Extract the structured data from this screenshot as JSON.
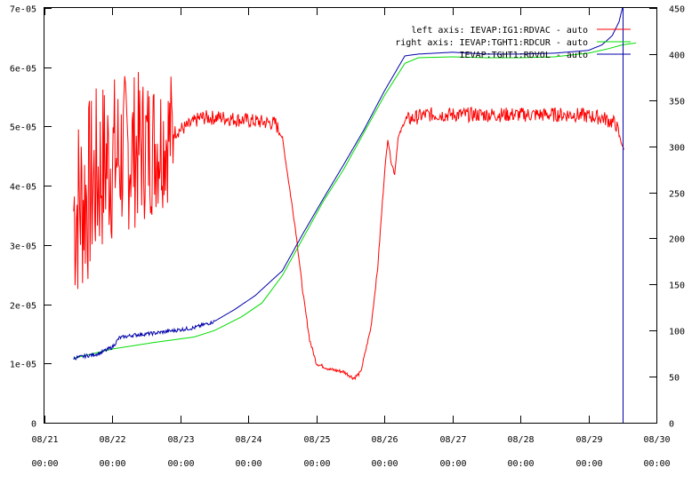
{
  "chart_data": {
    "type": "line",
    "title": "",
    "xlabel": "",
    "x_ticks": [
      {
        "date": "08/21",
        "time": "00:00",
        "day": 0
      },
      {
        "date": "08/22",
        "time": "00:00",
        "day": 1
      },
      {
        "date": "08/23",
        "time": "00:00",
        "day": 2
      },
      {
        "date": "08/24",
        "time": "00:00",
        "day": 3
      },
      {
        "date": "08/25",
        "time": "00:00",
        "day": 4
      },
      {
        "date": "08/26",
        "time": "00:00",
        "day": 5
      },
      {
        "date": "08/27",
        "time": "00:00",
        "day": 6
      },
      {
        "date": "08/28",
        "time": "00:00",
        "day": 7
      },
      {
        "date": "08/29",
        "time": "00:00",
        "day": 8
      },
      {
        "date": "08/30",
        "time": "00:00",
        "day": 9
      }
    ],
    "xlim": [
      0,
      9
    ],
    "left_axis": {
      "ylim": [
        0,
        7e-05
      ],
      "tick_values": [
        0,
        1e-05,
        2e-05,
        3e-05,
        4e-05,
        5e-05,
        6e-05,
        7e-05
      ],
      "tick_labels": [
        "0",
        "1e-05",
        "2e-05",
        "3e-05",
        "4e-05",
        "5e-05",
        "6e-05",
        "7e-05"
      ]
    },
    "right_axis": {
      "ylim": [
        0,
        450
      ],
      "tick_values": [
        0,
        50,
        100,
        150,
        200,
        250,
        300,
        350,
        400,
        450
      ],
      "tick_labels": [
        "0",
        "50",
        "100",
        "150",
        "200",
        "250",
        "300",
        "350",
        "400",
        "450"
      ]
    },
    "legend_position": "top-right",
    "series": [
      {
        "name": "left axis: IEVAP:IG1:RDVAC  - auto",
        "axis": "left",
        "color": "#ff0000",
        "style": "noisy",
        "points": [
          [
            0.43,
            3.6e-05
          ],
          [
            0.6,
            3.8e-05
          ],
          [
            0.9,
            4.4e-05
          ],
          [
            1.3,
            4.6e-05
          ],
          [
            1.6,
            4.7e-05
          ],
          [
            1.9,
            4.9e-05
          ],
          [
            2.1,
            5e-05
          ],
          [
            2.3,
            5.15e-05
          ],
          [
            2.6,
            5.15e-05
          ],
          [
            3.0,
            5.1e-05
          ],
          [
            3.4,
            5.05e-05
          ],
          [
            3.5,
            4.8e-05
          ],
          [
            3.6,
            4e-05
          ],
          [
            3.7,
            3.2e-05
          ],
          [
            3.8,
            2.2e-05
          ],
          [
            3.9,
            1.4e-05
          ],
          [
            4.0,
            1e-05
          ],
          [
            4.2,
            9e-06
          ],
          [
            4.4,
            8.6e-06
          ],
          [
            4.55,
            7.5e-06
          ],
          [
            4.65,
            8.5e-06
          ],
          [
            4.8,
            1.6e-05
          ],
          [
            4.9,
            2.6e-05
          ],
          [
            5.0,
            4.2e-05
          ],
          [
            5.05,
            4.8e-05
          ],
          [
            5.1,
            4.4e-05
          ],
          [
            5.15,
            4.2e-05
          ],
          [
            5.2,
            4.8e-05
          ],
          [
            5.3,
            5.1e-05
          ],
          [
            5.6,
            5.2e-05
          ],
          [
            6.2,
            5.2e-05
          ],
          [
            7.0,
            5.2e-05
          ],
          [
            7.8,
            5.2e-05
          ],
          [
            8.2,
            5.15e-05
          ],
          [
            8.4,
            5.05e-05
          ],
          [
            8.52,
            4.6e-05
          ]
        ]
      },
      {
        "name": "right axis: IEVAP:TGHT1:RDCUR  - auto",
        "axis": "right",
        "color": "#00dd00",
        "style": "smooth",
        "points": [
          [
            0.43,
            70
          ],
          [
            1.0,
            80
          ],
          [
            1.6,
            87
          ],
          [
            2.2,
            93
          ],
          [
            2.5,
            100
          ],
          [
            2.9,
            115
          ],
          [
            3.2,
            130
          ],
          [
            3.5,
            160
          ],
          [
            3.8,
            200
          ],
          [
            4.1,
            240
          ],
          [
            4.4,
            275
          ],
          [
            4.7,
            315
          ],
          [
            5.0,
            355
          ],
          [
            5.3,
            390
          ],
          [
            5.5,
            396
          ],
          [
            6.0,
            397
          ],
          [
            6.5,
            396
          ],
          [
            7.0,
            396
          ],
          [
            7.5,
            397
          ],
          [
            8.0,
            401
          ],
          [
            8.3,
            406
          ],
          [
            8.5,
            410
          ],
          [
            8.7,
            412
          ]
        ]
      },
      {
        "name": "IEVAP:TGHT1:RDVOL  - auto",
        "axis": "right",
        "color": "#0000aa",
        "style": "wiggle",
        "points": [
          [
            0.43,
            70
          ],
          [
            0.8,
            75
          ],
          [
            1.0,
            82
          ],
          [
            1.1,
            92
          ],
          [
            1.3,
            95
          ],
          [
            1.6,
            97
          ],
          [
            1.9,
            100
          ],
          [
            2.2,
            103
          ],
          [
            2.5,
            110
          ],
          [
            2.8,
            123
          ],
          [
            3.1,
            138
          ],
          [
            3.35,
            155
          ],
          [
            3.5,
            165
          ],
          [
            3.8,
            205
          ],
          [
            4.1,
            243
          ],
          [
            4.4,
            280
          ],
          [
            4.7,
            318
          ],
          [
            5.0,
            360
          ],
          [
            5.3,
            398
          ],
          [
            5.5,
            400
          ],
          [
            6.0,
            402
          ],
          [
            6.5,
            400
          ],
          [
            7.0,
            400
          ],
          [
            7.5,
            401
          ],
          [
            8.0,
            404
          ],
          [
            8.2,
            410
          ],
          [
            8.35,
            420
          ],
          [
            8.45,
            435
          ],
          [
            8.5,
            450
          ]
        ]
      }
    ],
    "annotations": [
      {
        "type": "vertical_line",
        "day": 8.5,
        "color": "#0000aa"
      }
    ]
  }
}
